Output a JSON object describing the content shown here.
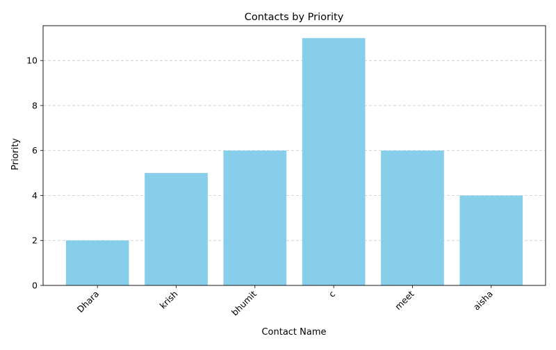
{
  "chart_data": {
    "type": "bar",
    "title": "Contacts by Priority",
    "xlabel": "Contact Name",
    "ylabel": "Priority",
    "categories": [
      "Dhara",
      "krish",
      "bhumit",
      "c",
      "meet",
      "aisha"
    ],
    "values": [
      2,
      5,
      6,
      11,
      6,
      4
    ],
    "ylim": [
      0,
      11.55
    ],
    "yticks": [
      0,
      2,
      4,
      6,
      8,
      10
    ],
    "grid": "y-dashed",
    "bar_color": "#87CEEB",
    "tick_label_rotation": 45
  }
}
